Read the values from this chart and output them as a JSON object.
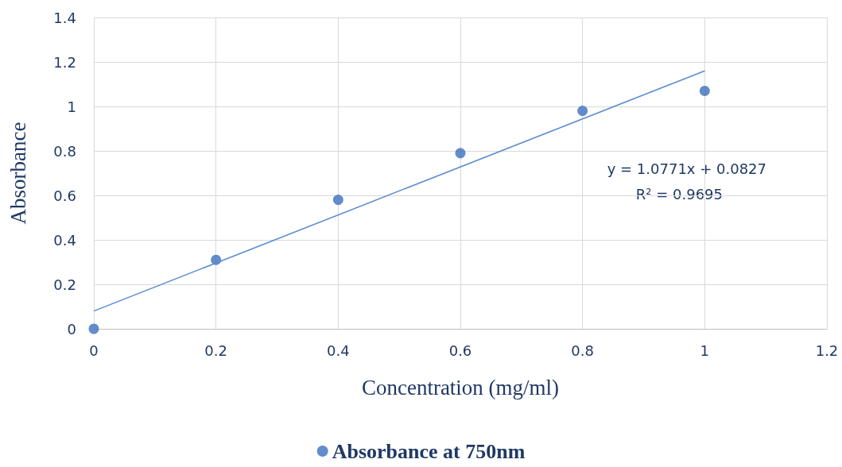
{
  "chart_data": {
    "type": "scatter",
    "xlabel": "Concentration (mg/ml)",
    "ylabel": "Absorbance",
    "series": [
      {
        "name": "Absorbance at 750nm",
        "color": "#3c6fbe",
        "x": [
          0,
          0.2,
          0.4,
          0.6,
          0.8,
          1
        ],
        "values": [
          0,
          0.31,
          0.58,
          0.79,
          0.98,
          1.07
        ]
      },
      {
        "type": "line",
        "marker": "none",
        "color": "#5b8bd0",
        "x": [
          0,
          1
        ],
        "values": [
          0.08,
          1.16
        ]
      }
    ],
    "annotations": [
      "y = 1.0771x + 0.0827",
      "R² = 0.9695"
    ],
    "xlim": [
      0,
      1.2
    ],
    "xticks": [
      0,
      0.2,
      0.4,
      0.6,
      0.8,
      1,
      1.2
    ],
    "ylim": [
      0,
      1.4
    ],
    "yticks": [
      0,
      0.2,
      0.4,
      0.6,
      0.8,
      1,
      1.2,
      1.4
    ],
    "grid": true,
    "legend": "bottom",
    "marker": "circle"
  }
}
